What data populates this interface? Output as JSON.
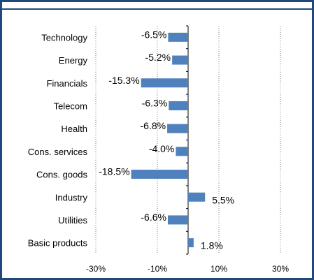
{
  "chart_data": {
    "type": "bar",
    "orientation": "horizontal",
    "categories": [
      "Technology",
      "Energy",
      "Financials",
      "Telecom",
      "Health",
      "Cons. services",
      "Cons. goods",
      "Industry",
      "Utilities",
      "Basic products"
    ],
    "values": [
      -6.5,
      -5.2,
      -15.3,
      -6.3,
      -6.8,
      -4.0,
      -18.5,
      5.5,
      -6.6,
      1.8
    ],
    "data_labels": [
      "-6.5%",
      "-5.2%",
      "-15.3%",
      "-6.3%",
      "-6.8%",
      "-4.0%",
      "-18.5%",
      "5.5%",
      "-6.6%",
      "1.8%"
    ],
    "x_ticks": [
      -30,
      -10,
      10,
      30
    ],
    "x_tick_labels": [
      "-30%",
      "-10%",
      "10%",
      "30%"
    ],
    "xlim": [
      -30,
      30
    ],
    "grid": "vertical dotted",
    "legend": "none",
    "title": "",
    "xlabel": "",
    "ylabel": "",
    "colors": {
      "bar": "#4F81BD",
      "frame_border": "#1F497D",
      "grid": "#808080"
    }
  }
}
